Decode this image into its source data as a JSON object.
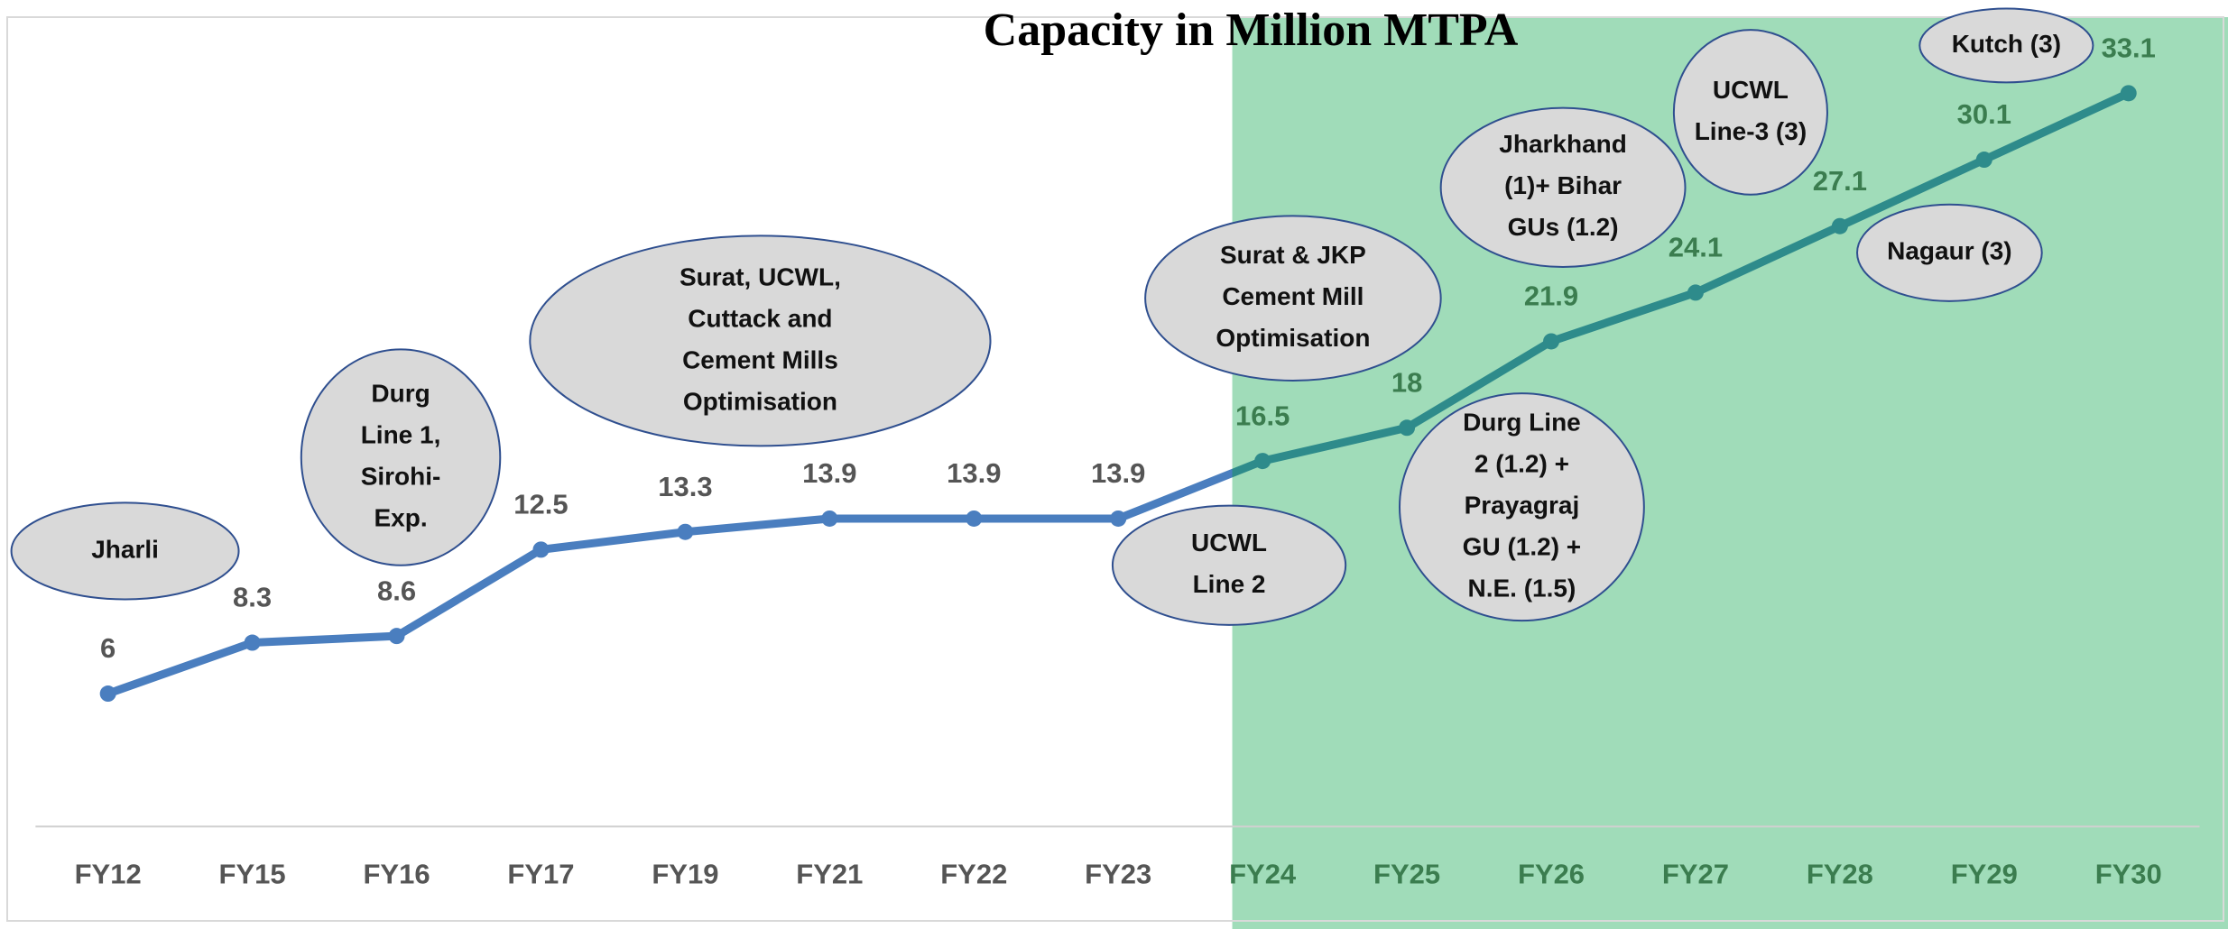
{
  "chart_data": {
    "type": "line",
    "title": "Capacity in Million MTPA",
    "categories": [
      "FY12",
      "FY15",
      "FY16",
      "FY17",
      "FY19",
      "FY21",
      "FY22",
      "FY23",
      "FY24",
      "FY25",
      "FY26",
      "FY27",
      "FY28",
      "FY29",
      "FY30"
    ],
    "series": [
      {
        "color": "#4a7ebf",
        "values": [
          6,
          8.3,
          8.6,
          12.5,
          13.3,
          13.9,
          13.9,
          13.9,
          16.5,
          18,
          21.9,
          24.1,
          27.1,
          30.1,
          33.1
        ]
      }
    ],
    "ylim": [
      0,
      36.5
    ],
    "highlight": {
      "start": "FY24",
      "color": "#a0dcb9",
      "line_color": "#2e8b8b",
      "label_color": "#3b7d4f"
    },
    "label_color": "#555555",
    "annotations": [
      {
        "lines": [
          "Jharli"
        ]
      },
      {
        "lines": [
          "Durg",
          "Line 1,",
          "Sirohi-",
          "Exp."
        ]
      },
      {
        "lines": [
          "Surat, UCWL,",
          "Cuttack and",
          "Cement Mills",
          "Optimisation"
        ]
      },
      {
        "lines": [
          "UCWL",
          "Line 2"
        ]
      },
      {
        "lines": [
          "Surat & JKP",
          "Cement Mill",
          "Optimisation"
        ]
      },
      {
        "lines": [
          "Durg Line",
          "2 (1.2) +",
          "Prayagraj",
          "GU (1.2) +",
          "N.E. (1.5)"
        ]
      },
      {
        "lines": [
          "Jharkhand",
          "(1)+ Bihar",
          "GUs (1.2)"
        ]
      },
      {
        "lines": [
          "UCWL",
          "Line-3 (3)"
        ]
      },
      {
        "lines": [
          "Kutch (3)"
        ]
      },
      {
        "lines": [
          "Nagaur (3)"
        ]
      }
    ]
  }
}
